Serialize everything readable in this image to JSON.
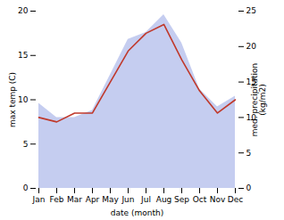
{
  "chart_data": {
    "type": "line",
    "categories": [
      "Jan",
      "Feb",
      "Mar",
      "Apr",
      "May",
      "Jun",
      "Jul",
      "Aug",
      "Sep",
      "Oct",
      "Nov",
      "Dec"
    ],
    "series": [
      {
        "type": "area",
        "axis": "y2",
        "color": "#c5cdf0",
        "values": [
          12.0,
          10.0,
          10.0,
          11.0,
          16.0,
          21.0,
          22.0,
          24.5,
          20.5,
          14.0,
          11.5,
          13.0
        ]
      },
      {
        "type": "line",
        "color": "#c0392b",
        "values": [
          8.0,
          7.5,
          8.5,
          8.5,
          12.0,
          15.5,
          17.5,
          18.5,
          14.5,
          11.0,
          8.5,
          10.0
        ]
      }
    ],
    "xlabel": "date (month)",
    "ylabel": "max temp (C)",
    "y2label": "med. precipitation\n(kg/m2)",
    "ylim": [
      0,
      20
    ],
    "yticks": [
      0,
      5,
      10,
      15,
      20
    ],
    "y2lim": [
      0,
      25
    ],
    "y2ticks": [
      0,
      5,
      10,
      15,
      20,
      25
    ],
    "grid": false
  }
}
